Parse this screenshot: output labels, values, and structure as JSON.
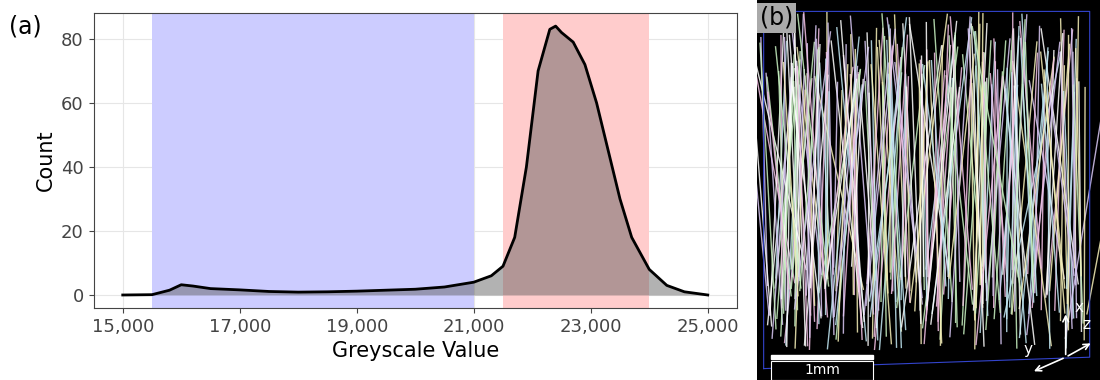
{
  "chart_data": {
    "type": "area",
    "panel_label": "(a)",
    "x_label": "Greyscale Value",
    "y_label": "Count",
    "x": [
      15000,
      15500,
      15800,
      16000,
      16200,
      16500,
      17000,
      17500,
      18000,
      18500,
      19000,
      19500,
      20000,
      20500,
      21000,
      21300,
      21500,
      21700,
      21900,
      22100,
      22300,
      22400,
      22500,
      22700,
      22900,
      23100,
      23300,
      23500,
      23700,
      24000,
      24300,
      24600,
      25000
    ],
    "values": [
      0,
      0.1,
      1.5,
      3.2,
      2.8,
      2.0,
      1.6,
      1.1,
      0.9,
      1.0,
      1.2,
      1.5,
      1.8,
      2.5,
      4,
      6,
      9,
      18,
      40,
      70,
      83,
      84,
      82,
      79,
      72,
      60,
      45,
      30,
      18,
      8,
      3,
      1,
      0
    ],
    "color": "#000000",
    "shaded_ranges": [
      {
        "from": 15500,
        "to": 21000,
        "color": "#ccccff"
      },
      {
        "from": 21500,
        "to": 24000,
        "color": "#ffcccc"
      }
    ],
    "xlim": [
      14500,
      25500
    ],
    "xticks": [
      {
        "value": 15000,
        "label": "15,000"
      },
      {
        "value": 17000,
        "label": "17,000"
      },
      {
        "value": 19000,
        "label": "19,000"
      },
      {
        "value": 21000,
        "label": "21,000"
      },
      {
        "value": 23000,
        "label": "23,000"
      },
      {
        "value": 25000,
        "label": "25,000"
      }
    ],
    "ylim": [
      -4,
      88
    ],
    "yticks": [
      0,
      20,
      40,
      60,
      80
    ],
    "grid": true
  },
  "image_panel": {
    "label": "(b)",
    "scale_bar": "1mm",
    "axis_labels": [
      "x",
      "y",
      "z"
    ]
  }
}
